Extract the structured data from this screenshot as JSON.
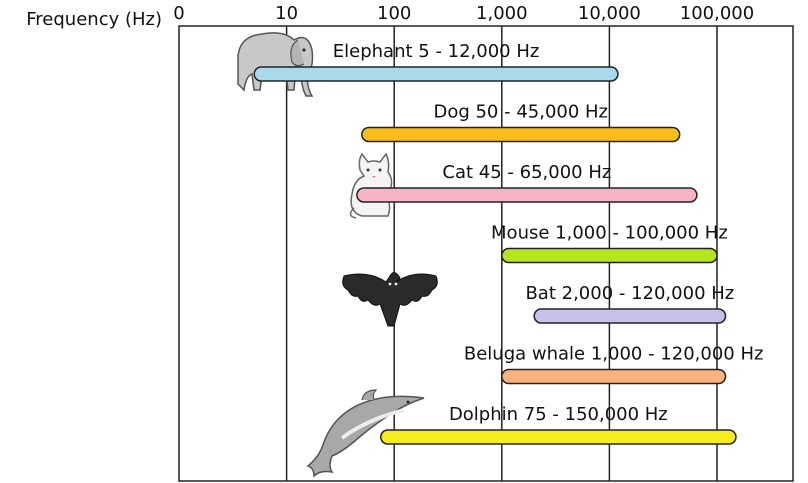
{
  "chart_data": {
    "type": "bar",
    "orientation": "horizontal-range",
    "scale": "log",
    "axis_label": "Frequency (Hz)",
    "x_ticks": [
      "0",
      "10",
      "100",
      "1,000",
      "10,000",
      "100,000"
    ],
    "tick_values": [
      1,
      10,
      100,
      1000,
      10000,
      100000
    ],
    "xlim": [
      1,
      300000
    ],
    "grid": true,
    "series": [
      {
        "label": "Elephant 5 - 12,000 Hz",
        "low": 5,
        "high": 12000,
        "color": "#a9d9ec",
        "icon": "elephant-icon"
      },
      {
        "label": "Dog 50 - 45,000 Hz",
        "low": 50,
        "high": 45000,
        "color": "#f9bd19",
        "icon": ""
      },
      {
        "label": "Cat 45 - 65,000 Hz",
        "low": 45,
        "high": 65000,
        "color": "#f6b5c6",
        "icon": "cat-icon"
      },
      {
        "label": "Mouse 1,000 - 100,000 Hz",
        "low": 1000,
        "high": 100000,
        "color": "#b5e61d",
        "icon": ""
      },
      {
        "label": "Bat 2,000 - 120,000 Hz",
        "low": 2000,
        "high": 120000,
        "color": "#c9c0ec",
        "icon": "bat-icon"
      },
      {
        "label": "Beluga whale 1,000 - 120,000 Hz",
        "low": 1000,
        "high": 120000,
        "color": "#f8b27f",
        "icon": ""
      },
      {
        "label": "Dolphin 75 - 150,000 Hz",
        "low": 75,
        "high": 150000,
        "color": "#f5ec1c",
        "icon": "dolphin-icon"
      }
    ]
  }
}
